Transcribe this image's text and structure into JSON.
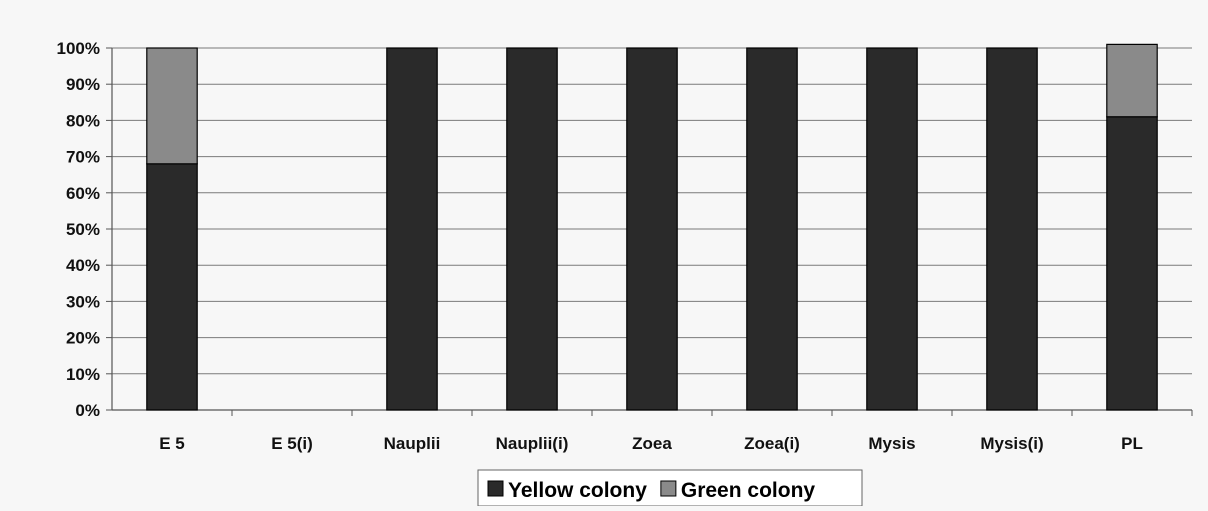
{
  "chart_data": {
    "type": "bar",
    "stacked": true,
    "categories": [
      "E 5",
      "E 5(i)",
      "Nauplii",
      "Nauplii(i)",
      "Zoea",
      "Zoea(i)",
      "Mysis",
      "Mysis(i)",
      "PL"
    ],
    "series": [
      {
        "name": "Yellow colony",
        "values": [
          68,
          0,
          100,
          100,
          100,
          100,
          100,
          100,
          81
        ],
        "color": "#2a2a2a"
      },
      {
        "name": "Green colony",
        "values": [
          32,
          0,
          0,
          0,
          0,
          0,
          0,
          0,
          20
        ],
        "color": "#8a8a8a"
      }
    ],
    "ylim": [
      0,
      100
    ],
    "yticks": [
      "0%",
      "10%",
      "20%",
      "30%",
      "40%",
      "50%",
      "60%",
      "70%",
      "80%",
      "90%",
      "100%"
    ],
    "grid": true,
    "legend_position": "bottom-center",
    "title": "",
    "xlabel": "",
    "ylabel": ""
  }
}
